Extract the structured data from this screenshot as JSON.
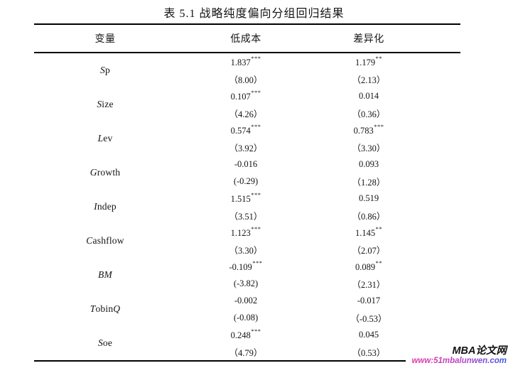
{
  "title": "表 5.1 战略纯度偏向分组回归结果",
  "table": {
    "headers": [
      "变量",
      "低成本",
      "差异化"
    ],
    "rows": [
      {
        "variable": "Sp",
        "groups": [
          {
            "coef": "1.837",
            "stars": "***",
            "t": "（8.00）"
          },
          {
            "coef": "1.179",
            "stars": "**",
            "t": "（2.13）"
          }
        ]
      },
      {
        "variable": "Size",
        "groups": [
          {
            "coef": "0.107",
            "stars": "***",
            "t": "（4.26）"
          },
          {
            "coef": "0.014",
            "stars": "",
            "t": "（0.36）"
          }
        ]
      },
      {
        "variable": "Lev",
        "groups": [
          {
            "coef": "0.574",
            "stars": "***",
            "t": "（3.92）"
          },
          {
            "coef": "0.783",
            "stars": "***",
            "t": "（3.30）"
          }
        ]
      },
      {
        "variable": "Growth",
        "groups": [
          {
            "coef": "-0.016",
            "stars": "",
            "t": "(-0.29)"
          },
          {
            "coef": "0.093",
            "stars": "",
            "t": "（1.28）"
          }
        ]
      },
      {
        "variable": "Indep",
        "groups": [
          {
            "coef": "1.515",
            "stars": "***",
            "t": "（3.51）"
          },
          {
            "coef": "0.519",
            "stars": "",
            "t": "（0.86）"
          }
        ]
      },
      {
        "variable": "Cashflow",
        "groups": [
          {
            "coef": "1.123",
            "stars": "***",
            "t": "（3.30）"
          },
          {
            "coef": "1.145",
            "stars": "**",
            "t": "（2.07）"
          }
        ]
      },
      {
        "variable": "BM",
        "groups": [
          {
            "coef": "-0.109",
            "stars": "***",
            "t": "(-3.82)"
          },
          {
            "coef": "0.089",
            "stars": "**",
            "t": "（2.31）"
          }
        ]
      },
      {
        "variable": "TobinQ",
        "groups": [
          {
            "coef": "-0.002",
            "stars": "",
            "t": "(-0.08)"
          },
          {
            "coef": "-0.017",
            "stars": "",
            "t": "（-0.53）"
          }
        ]
      },
      {
        "variable": "Soe",
        "groups": [
          {
            "coef": "0.248",
            "stars": "***",
            "t": "（4.79）"
          },
          {
            "coef": "0.045",
            "stars": "",
            "t": "（0.53）"
          }
        ]
      }
    ]
  },
  "watermark": {
    "site_name": "MBA论文网",
    "url": "www:51mbalunwen.com",
    "site_name_color": "#141414",
    "url_color_start": "#e9379f",
    "url_color_end": "#3c55e8"
  }
}
